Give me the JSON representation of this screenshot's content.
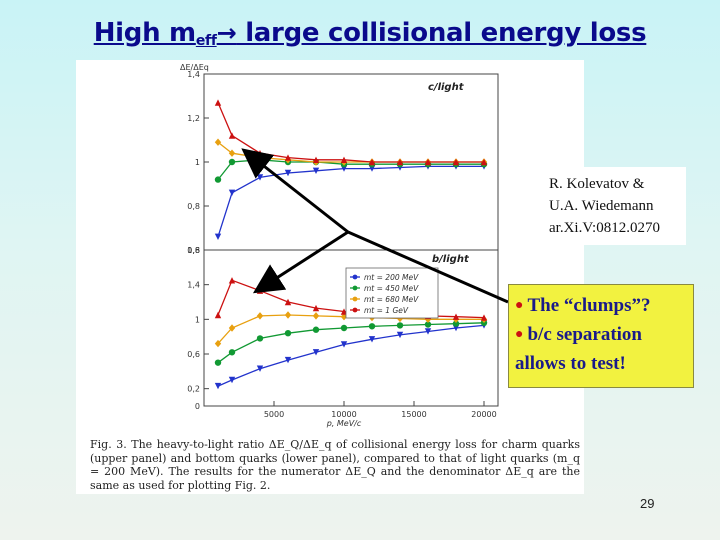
{
  "slide": {
    "title_before": "High m",
    "title_sub": "eff",
    "title_arrow": "→",
    "title_after": " large collisional energy loss",
    "page_number": "29"
  },
  "reference": {
    "line1": "R. Kolevatov &",
    "line2": "U.A. Wiedemann",
    "line3": "ar.Xi.V:0812.0270"
  },
  "notes": {
    "bullet1": "The “clumps”?",
    "bullet2": "b/c separation",
    "bullet2_cont": "allows to test!"
  },
  "figure": {
    "ylabel": "ΔE/ΔEq",
    "caption": "Fig. 3.    The heavy-to-light ratio ΔE_Q/ΔE_q of collisional energy loss for charm quarks (upper panel) and bottom quarks (lower panel), compared to that of light quarks (m_q = 200 MeV). The results for the numerator ΔE_Q and the denominator ΔE_q are the same as used for plotting Fig. 2."
  },
  "chart_data": [
    {
      "type": "line",
      "panel_label": "c/light",
      "ylabel": "ΔE/ΔEq",
      "ylim": [
        0.6,
        1.4
      ],
      "yticks": [
        "0,6",
        "0,8",
        "1",
        "1,2",
        "1,4"
      ],
      "grid": false,
      "series": [
        {
          "name": "mt = 200 MeV",
          "color": "#2233cc",
          "marker": "triangle-down",
          "x": [
            1000,
            2000,
            4000,
            6000,
            8000,
            10000,
            12000,
            14000,
            16000,
            18000,
            20000
          ],
          "y": [
            0.66,
            0.86,
            0.93,
            0.95,
            0.96,
            0.97,
            0.97,
            0.975,
            0.98,
            0.98,
            0.98
          ]
        },
        {
          "name": "mt = 450 MeV",
          "color": "#119933",
          "marker": "circle",
          "x": [
            1000,
            2000,
            4000,
            6000,
            8000,
            10000,
            12000,
            14000,
            16000,
            18000,
            20000
          ],
          "y": [
            0.92,
            1.0,
            1.01,
            1.0,
            1.0,
            0.99,
            0.99,
            0.99,
            0.99,
            0.99,
            0.99
          ]
        },
        {
          "name": "mt = 680 MeV",
          "color": "#e8a010",
          "marker": "diamond",
          "x": [
            1000,
            2000,
            4000,
            6000,
            8000,
            10000,
            12000,
            14000,
            16000,
            18000,
            20000
          ],
          "y": [
            1.09,
            1.04,
            1.02,
            1.01,
            1.0,
            1.0,
            1.0,
            1.0,
            1.0,
            1.0,
            1.0
          ]
        },
        {
          "name": "mt = 1 GeV",
          "color": "#cc1111",
          "marker": "triangle-up",
          "x": [
            1000,
            2000,
            4000,
            6000,
            8000,
            10000,
            12000,
            14000,
            16000,
            18000,
            20000
          ],
          "y": [
            1.27,
            1.12,
            1.04,
            1.02,
            1.01,
            1.01,
            1.0,
            1.0,
            1.0,
            1.0,
            1.0
          ]
        }
      ]
    },
    {
      "type": "line",
      "panel_label": "b/light",
      "xlabel": "p, MeV/c",
      "xlim": [
        0,
        21000
      ],
      "xticks": [
        "5000",
        "10000",
        "15000",
        "20000"
      ],
      "ylim": [
        0,
        1.8
      ],
      "yticks": [
        "0",
        "0,2",
        "0,6",
        "1",
        "1,4",
        "1,8"
      ],
      "legend": "top-left",
      "grid": false,
      "series": [
        {
          "name": "mt = 200 MeV",
          "color": "#2233cc",
          "marker": "triangle-down",
          "x": [
            1000,
            2000,
            4000,
            6000,
            8000,
            10000,
            12000,
            14000,
            16000,
            18000,
            20000
          ],
          "y": [
            0.23,
            0.3,
            0.43,
            0.53,
            0.62,
            0.71,
            0.77,
            0.82,
            0.86,
            0.9,
            0.93
          ]
        },
        {
          "name": "mt = 450 MeV",
          "color": "#119933",
          "marker": "circle",
          "x": [
            1000,
            2000,
            4000,
            6000,
            8000,
            10000,
            12000,
            14000,
            16000,
            18000,
            20000
          ],
          "y": [
            0.5,
            0.62,
            0.78,
            0.84,
            0.88,
            0.9,
            0.92,
            0.93,
            0.94,
            0.95,
            0.96
          ]
        },
        {
          "name": "mt = 680 MeV",
          "color": "#e8a010",
          "marker": "diamond",
          "x": [
            1000,
            2000,
            4000,
            6000,
            8000,
            10000,
            12000,
            14000,
            16000,
            18000,
            20000
          ],
          "y": [
            0.72,
            0.9,
            1.04,
            1.05,
            1.04,
            1.03,
            1.02,
            1.01,
            1.0,
            1.0,
            1.0
          ]
        },
        {
          "name": "mt = 1 GeV",
          "color": "#cc1111",
          "marker": "triangle-up",
          "x": [
            1000,
            2000,
            4000,
            6000,
            8000,
            10000,
            12000,
            14000,
            16000,
            18000,
            20000
          ],
          "y": [
            1.05,
            1.45,
            1.33,
            1.2,
            1.13,
            1.09,
            1.06,
            1.05,
            1.04,
            1.03,
            1.02
          ]
        }
      ]
    }
  ]
}
